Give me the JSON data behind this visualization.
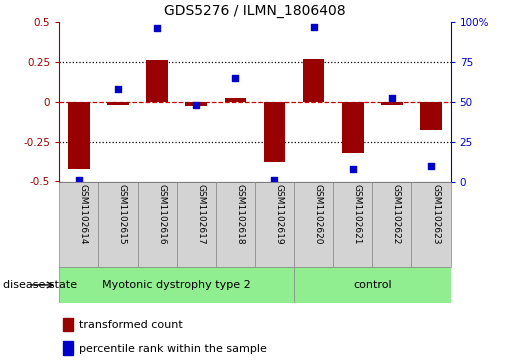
{
  "title": "GDS5276 / ILMN_1806408",
  "samples": [
    "GSM1102614",
    "GSM1102615",
    "GSM1102616",
    "GSM1102617",
    "GSM1102618",
    "GSM1102619",
    "GSM1102620",
    "GSM1102621",
    "GSM1102622",
    "GSM1102623"
  ],
  "transformed_count": [
    -0.42,
    -0.02,
    0.26,
    -0.03,
    0.02,
    -0.38,
    0.27,
    -0.32,
    -0.02,
    -0.18
  ],
  "percentile_rank": [
    1,
    58,
    96,
    48,
    65,
    1,
    97,
    8,
    52,
    10
  ],
  "bar_color": "#990000",
  "dot_color": "#0000cc",
  "ylim_left": [
    -0.5,
    0.5
  ],
  "ylim_right": [
    0,
    100
  ],
  "yticks_left": [
    -0.5,
    -0.25,
    0.0,
    0.25,
    0.5
  ],
  "yticks_right": [
    0,
    25,
    50,
    75,
    100
  ],
  "ytick_labels_left": [
    "-0.5",
    "-0.25",
    "0",
    "0.25",
    "0.5"
  ],
  "ytick_labels_right": [
    "0",
    "25",
    "50",
    "75",
    "100%"
  ],
  "group1_label": "Myotonic dystrophy type 2",
  "group2_label": "control",
  "group1_color": "#90EE90",
  "group2_color": "#90EE90",
  "disease_state_label": "disease state",
  "legend_bar_label": "transformed count",
  "legend_dot_label": "percentile rank within the sample",
  "group1_indices": [
    0,
    1,
    2,
    3,
    4,
    5
  ],
  "group2_indices": [
    6,
    7,
    8,
    9
  ],
  "bar_width": 0.55,
  "sample_box_color": "#d3d3d3",
  "bar_edge_color": "none",
  "zero_line_color": "#cc0000",
  "hline_color": "black",
  "spine_color": "black"
}
